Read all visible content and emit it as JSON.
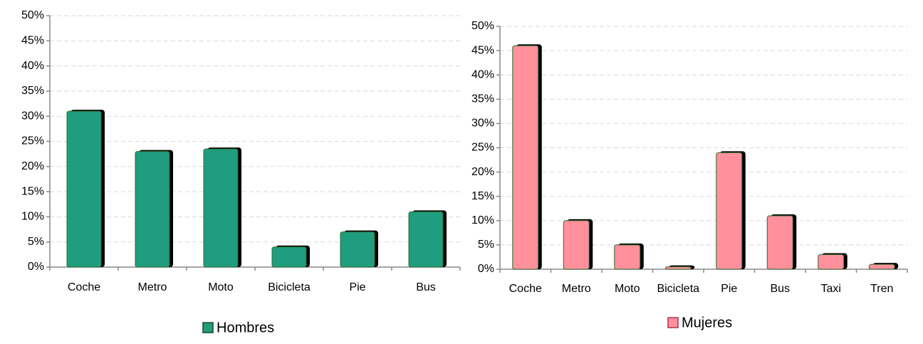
{
  "chart_data": [
    {
      "type": "bar",
      "categories": [
        "Coche",
        "Metro",
        "Moto",
        "Bicicleta",
        "Pie",
        "Bus"
      ],
      "series": [
        {
          "name": "Hombres",
          "color": "#1f9d7e",
          "values": [
            31,
            23,
            23.5,
            4,
            7,
            11
          ]
        }
      ],
      "ylim": [
        0,
        50
      ],
      "yticks": [
        {
          "value": 0,
          "label": "0%"
        },
        {
          "value": 5,
          "label": "5%"
        },
        {
          "value": 10,
          "label": "10%"
        },
        {
          "value": 15,
          "label": "15%"
        },
        {
          "value": 20,
          "label": "20%"
        },
        {
          "value": 25,
          "label": "25%"
        },
        {
          "value": 30,
          "label": "30%"
        },
        {
          "value": 35,
          "label": "35%"
        },
        {
          "value": 40,
          "label": "40%"
        },
        {
          "value": 45,
          "label": "45%"
        },
        {
          "value": 50,
          "label": "50%"
        }
      ],
      "grid": true
    },
    {
      "type": "bar",
      "categories": [
        "Coche",
        "Metro",
        "Moto",
        "Bicicleta",
        "Pie",
        "Bus",
        "Taxi",
        "Tren"
      ],
      "series": [
        {
          "name": "Mujeres",
          "color": "#ff909c",
          "values": [
            46,
            10,
            5,
            0.5,
            24,
            11,
            3,
            1
          ]
        }
      ],
      "ylim": [
        0,
        50
      ],
      "yticks": [
        {
          "value": 0,
          "label": "0%"
        },
        {
          "value": 5,
          "label": "5%"
        },
        {
          "value": 10,
          "label": "10%"
        },
        {
          "value": 15,
          "label": "15%"
        },
        {
          "value": 20,
          "label": "20%"
        },
        {
          "value": 25,
          "label": "25%"
        },
        {
          "value": 30,
          "label": "30%"
        },
        {
          "value": 35,
          "label": "35%"
        },
        {
          "value": 40,
          "label": "40%"
        },
        {
          "value": 45,
          "label": "45%"
        },
        {
          "value": 50,
          "label": "50%"
        }
      ],
      "grid": true
    }
  ]
}
